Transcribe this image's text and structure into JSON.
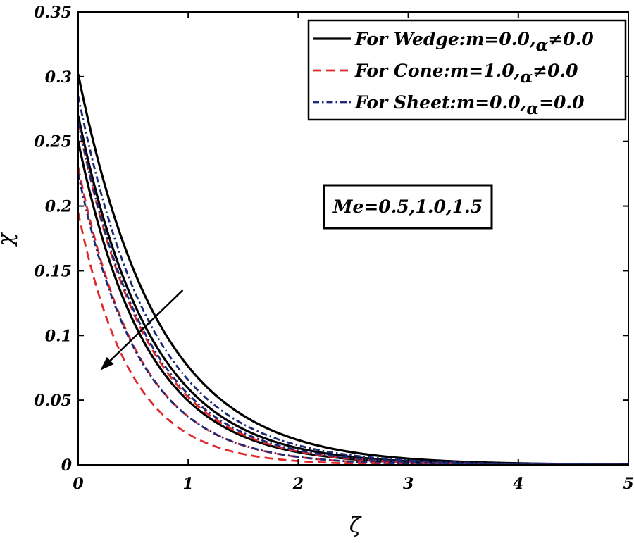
{
  "chart_data": {
    "type": "line",
    "xlabel": "ζ",
    "ylabel": "χ",
    "xlim": [
      0,
      5
    ],
    "ylim": [
      0,
      0.35
    ],
    "x_ticks": [
      {
        "value": 0,
        "label": "0"
      },
      {
        "value": 1,
        "label": "1"
      },
      {
        "value": 2,
        "label": "2"
      },
      {
        "value": 3,
        "label": "3"
      },
      {
        "value": 4,
        "label": "4"
      },
      {
        "value": 5,
        "label": "5"
      }
    ],
    "y_ticks": [
      {
        "value": 0,
        "label": "0"
      },
      {
        "value": 0.05,
        "label": "0.05"
      },
      {
        "value": 0.1,
        "label": "0.1"
      },
      {
        "value": 0.15,
        "label": "0.15"
      },
      {
        "value": 0.2,
        "label": "0.2"
      },
      {
        "value": 0.25,
        "label": "0.25"
      },
      {
        "value": 0.3,
        "label": "0.3"
      },
      {
        "value": 0.35,
        "label": "0.35"
      }
    ],
    "grid": false,
    "legend": {
      "position": "top-right",
      "entries": [
        {
          "group": "wedge",
          "main": "For Wedge:m=0.0,",
          "sub": "α",
          "tail": "≠0.0"
        },
        {
          "group": "cone",
          "main": "For Cone:m=1.0,",
          "sub": "α",
          "tail": "≠0.0"
        },
        {
          "group": "sheet",
          "main": "For Sheet:m=0.0,",
          "sub": "α",
          "tail": "=0.0"
        }
      ]
    },
    "annotation": {
      "text": "Me=0.5,1.0,1.5",
      "arrow": {
        "from": [
          0.95,
          0.135
        ],
        "to": [
          0.2,
          0.073
        ]
      }
    },
    "series": [
      {
        "name": "Wedge Me=0.5",
        "group": "wedge",
        "style": "solid",
        "color": "#000000",
        "y0": 0.302,
        "decay": 1.38
      },
      {
        "name": "Wedge Me=1.0",
        "group": "wedge",
        "style": "solid",
        "color": "#000000",
        "y0": 0.27,
        "decay": 1.52
      },
      {
        "name": "Wedge Me=1.5",
        "group": "wedge",
        "style": "solid",
        "color": "#000000",
        "y0": 0.25,
        "decay": 1.62
      },
      {
        "name": "Cone Me=0.5",
        "group": "cone",
        "style": "dashed",
        "color": "#e0282a",
        "y0": 0.265,
        "decay": 1.62
      },
      {
        "name": "Cone Me=1.0",
        "group": "cone",
        "style": "dashed",
        "color": "#e0282a",
        "y0": 0.23,
        "decay": 1.82
      },
      {
        "name": "Cone Me=1.5",
        "group": "cone",
        "style": "dashed",
        "color": "#e0282a",
        "y0": 0.195,
        "decay": 2.1
      },
      {
        "name": "Sheet Me=0.5",
        "group": "sheet",
        "style": "dashdot",
        "color": "#1c2a78",
        "y0": 0.285,
        "decay": 1.47
      },
      {
        "name": "Sheet Me=1.0",
        "group": "sheet",
        "style": "dashdot",
        "color": "#1c2a78",
        "y0": 0.265,
        "decay": 1.58
      },
      {
        "name": "Sheet Me=1.5",
        "group": "sheet",
        "style": "dashdot",
        "color": "#1c2a78",
        "y0": 0.225,
        "decay": 1.8
      }
    ]
  }
}
